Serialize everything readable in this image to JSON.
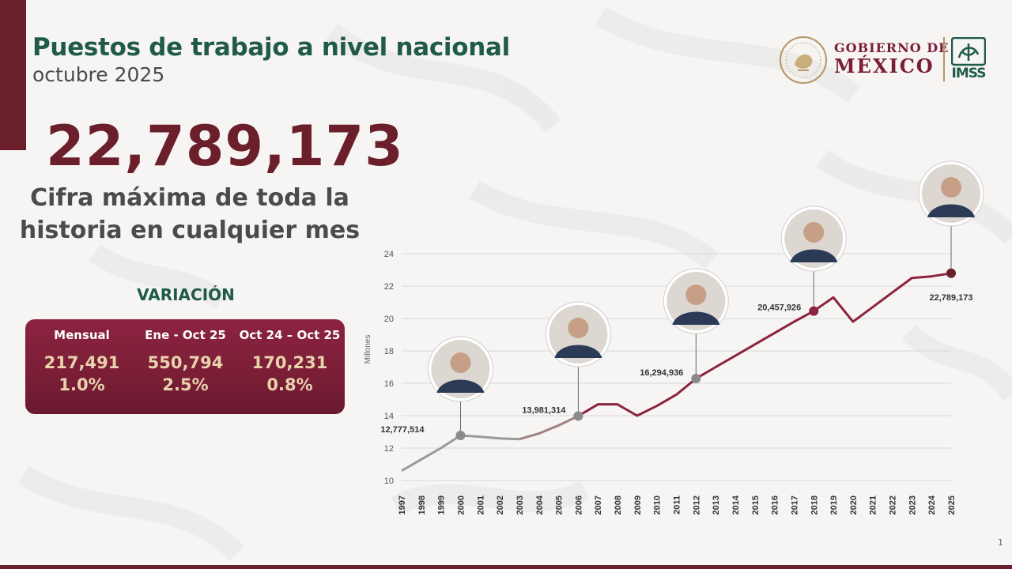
{
  "title": "Puestos de trabajo a nivel nacional",
  "subtitle": "octubre 2025",
  "headline_number": "22,789,173",
  "headline_text": "Cifra máxima de toda la historia en cualquier mes",
  "variation": {
    "title": "VARIACIÓN",
    "columns": [
      {
        "header": "Mensual",
        "value": "217,491",
        "pct": "1.0%"
      },
      {
        "header": "Ene - Oct 25",
        "value": "550,794",
        "pct": "2.5%"
      },
      {
        "header": "Oct 24 – Oct 25",
        "value": "170,231",
        "pct": "0.8%"
      }
    ]
  },
  "logo": {
    "line1": "GOBIERNO DE",
    "line2": "MÉXICO",
    "imss": "IMSS"
  },
  "page_number": "1",
  "colors": {
    "maroon": "#6b1f2a",
    "green": "#1f5a4b",
    "gold": "#b59660",
    "line_gray": "#9a9a9a",
    "line_maroon": "#8c2340"
  },
  "chart_data": {
    "type": "line",
    "ylabel": "Millones",
    "ylim": [
      10,
      24
    ],
    "yticks": [
      10,
      12,
      14,
      16,
      18,
      20,
      22,
      24
    ],
    "grid": true,
    "x": [
      1997,
      1998,
      1999,
      2000,
      2001,
      2002,
      2003,
      2004,
      2005,
      2006,
      2007,
      2008,
      2009,
      2010,
      2011,
      2012,
      2013,
      2014,
      2015,
      2016,
      2017,
      2018,
      2019,
      2020,
      2021,
      2022,
      2023,
      2024,
      2025
    ],
    "series": [
      {
        "values": [
          10.6,
          11.3,
          12.0,
          12.78,
          12.7,
          12.6,
          12.55,
          12.9,
          13.4,
          13.98,
          14.7,
          14.7,
          14.0,
          14.6,
          15.3,
          16.29,
          17.0,
          17.7,
          18.4,
          19.1,
          19.8,
          20.46,
          21.3,
          19.8,
          20.7,
          21.6,
          22.5,
          22.6,
          22.79
        ]
      }
    ],
    "segments": [
      {
        "from": 1997,
        "to": 2000,
        "color": "#9a9a9a"
      },
      {
        "from": 2000,
        "to": 2003,
        "color": "#9a9a9a"
      },
      {
        "from": 2003,
        "to": 2006,
        "color": "#a08080"
      },
      {
        "from": 2006,
        "to": 2025,
        "color": "#8c2340"
      }
    ],
    "annotations": [
      {
        "x": 2000,
        "y": 12.78,
        "label": "12,777,514",
        "marker_color": "#8a8a8a",
        "portrait": "president-fox"
      },
      {
        "x": 2006,
        "y": 13.98,
        "label": "13,981,314",
        "marker_color": "#8a8a8a",
        "portrait": "president-calderon"
      },
      {
        "x": 2012,
        "y": 16.29,
        "label": "16,294,936",
        "marker_color": "#8a8a8a",
        "portrait": "president-pena-nieto"
      },
      {
        "x": 2018,
        "y": 20.46,
        "label": "20,457,926",
        "marker_color": "#8c2340",
        "portrait": "president-lopez-obrador"
      },
      {
        "x": 2025,
        "y": 22.79,
        "label": "22,789,173",
        "marker_color": "#6b1f2a",
        "portrait": "president-sheinbaum"
      }
    ]
  }
}
